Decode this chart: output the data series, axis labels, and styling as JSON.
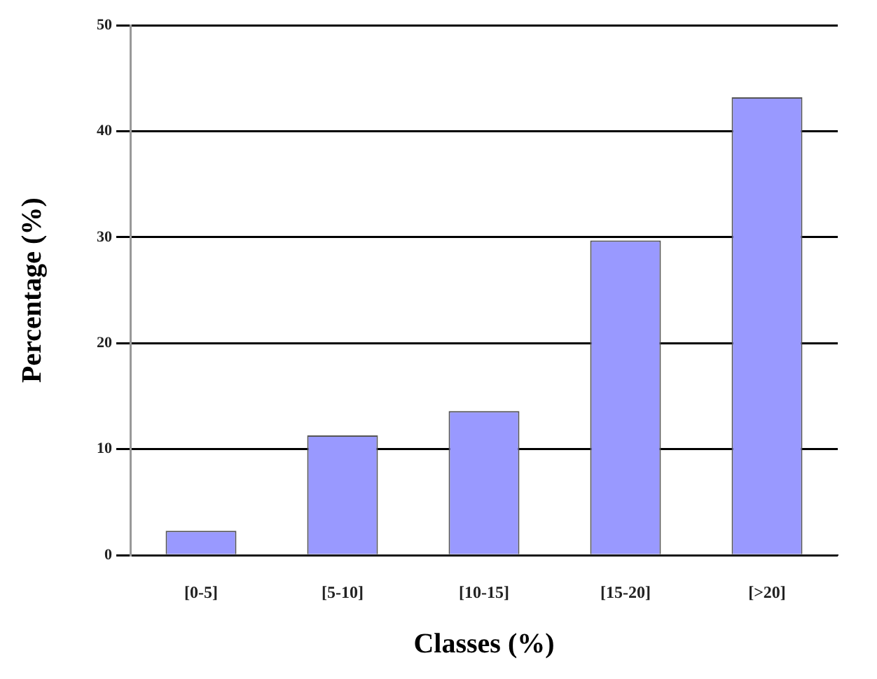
{
  "chart_data": {
    "type": "bar",
    "xlabel": "Classes (%)",
    "ylabel": "Percentage (%)",
    "categories": [
      "[0-5]",
      "[5-10]",
      "[10-15]",
      "[15-20]",
      "[>20]"
    ],
    "values": [
      2.3,
      11.3,
      13.6,
      29.7,
      43.2
    ],
    "color": "#9999ff",
    "ylim": [
      0,
      50
    ],
    "yticks": [
      0,
      10,
      20,
      30,
      40,
      50
    ],
    "grid": "y",
    "legend": false
  }
}
